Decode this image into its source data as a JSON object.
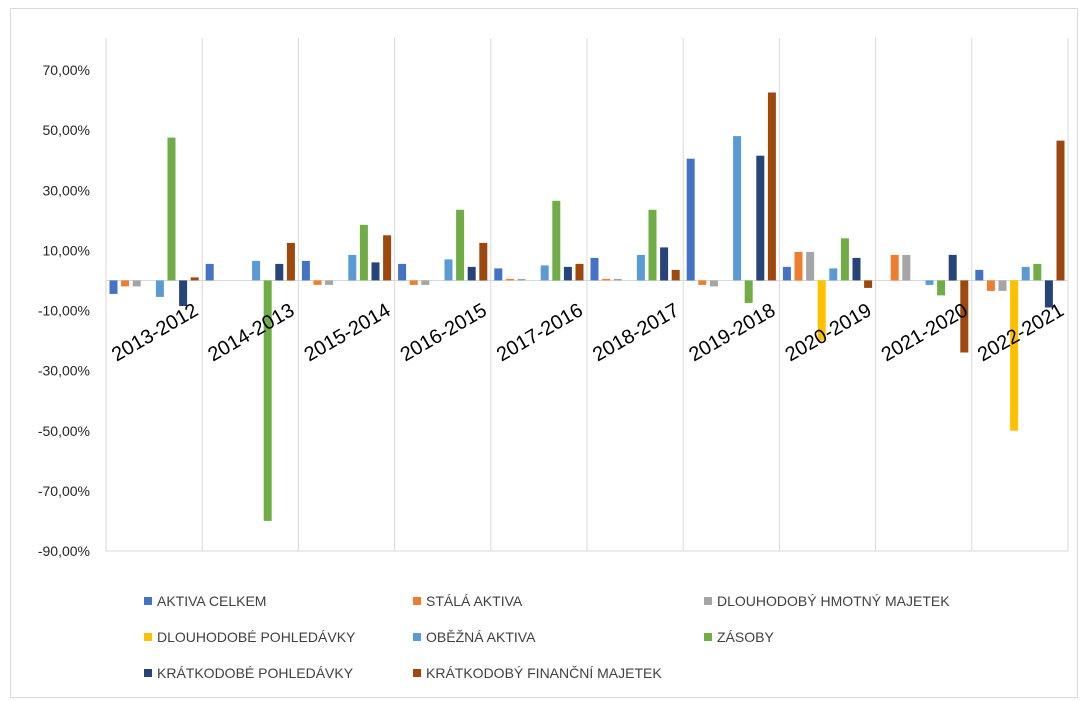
{
  "chart_data": {
    "type": "bar",
    "title": "",
    "xlabel": "",
    "ylabel": "",
    "ylim": [
      -90,
      80
    ],
    "yticks": [
      70,
      50,
      30,
      10,
      -10,
      -30,
      -50,
      -70,
      -90
    ],
    "ytick_labels": [
      "70,00%",
      "50,00%",
      "30,00%",
      "10,00%",
      "-10,00%",
      "-30,00%",
      "-50,00%",
      "-70,00%",
      "-90,00%"
    ],
    "grid": true,
    "grid_orientation": "vertical",
    "legend_position": "bottom",
    "categories": [
      "2013-2012",
      "2014-2013",
      "2015-2014",
      "2016-2015",
      "2017-2016",
      "2018-2017",
      "2019-2018",
      "2020-2019",
      "2021-2020",
      "2022-2021"
    ],
    "series": [
      {
        "name": "AKTIVA CELKEM",
        "color": "#4472C4",
        "values": [
          -4.5,
          5.5,
          6.5,
          5.5,
          4.0,
          7.5,
          40.5,
          4.5,
          0.0,
          3.5
        ]
      },
      {
        "name": "STÁLÁ AKTIVA",
        "color": "#ED7D31",
        "values": [
          -2.0,
          0.0,
          -1.5,
          -1.5,
          0.5,
          0.5,
          -1.5,
          9.5,
          8.5,
          -3.5
        ]
      },
      {
        "name": "DLOUHODOBÝ HMOTNÝ MAJETEK",
        "color": "#A5A5A5",
        "values": [
          -2.0,
          0.0,
          -1.5,
          -1.5,
          0.5,
          0.5,
          -2.0,
          9.5,
          8.5,
          -3.5
        ]
      },
      {
        "name": "DLOUHODOBÉ POHLEDÁVKY",
        "color": "#FFC000",
        "values": [
          0.0,
          0.0,
          0.0,
          0.0,
          0.0,
          0.0,
          0.0,
          -20.0,
          0.0,
          -50.0
        ]
      },
      {
        "name": "OBĚŽNÁ AKTIVA",
        "color": "#5B9BD5",
        "values": [
          -5.5,
          6.5,
          8.5,
          7.0,
          5.0,
          8.5,
          48.0,
          4.0,
          -1.5,
          4.5
        ]
      },
      {
        "name": "ZÁSOBY",
        "color": "#70AD47",
        "values": [
          47.5,
          -80.0,
          18.5,
          23.5,
          26.5,
          23.5,
          -7.5,
          14.0,
          -5.0,
          5.5
        ]
      },
      {
        "name": "KRÁTKODOBÉ POHLEDÁVKY",
        "color": "#264478",
        "values": [
          -8.5,
          5.5,
          6.0,
          4.5,
          4.5,
          11.0,
          41.5,
          7.5,
          8.5,
          -9.0
        ]
      },
      {
        "name": "KRÁTKODOBÝ FINANČNÍ MAJETEK",
        "color": "#9E480E",
        "values": [
          1.0,
          12.5,
          15.0,
          12.5,
          5.5,
          3.5,
          62.5,
          -2.5,
          -24.0,
          46.5
        ]
      }
    ]
  }
}
